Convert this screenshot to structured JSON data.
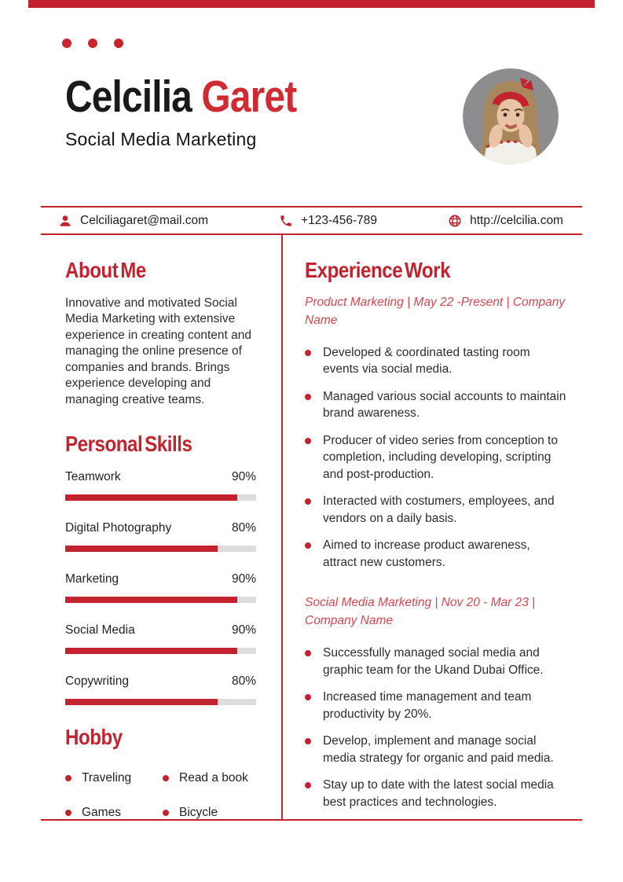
{
  "theme": {
    "primary_red": "#c2232e",
    "name_red": "#ce2b33",
    "job_title_red": "#d8464d",
    "bar_track_gray": "#dddddd"
  },
  "header": {
    "first_name": "Celcilia",
    "last_name": "Garet",
    "subtitle": "Social Media Marketing"
  },
  "contact": {
    "email": "Celciliagaret@mail.com",
    "phone": "+123-456-789",
    "website": "http://celcilia.com"
  },
  "about": {
    "title": "About Me",
    "text": "Innovative and motivated Social Media Marketing with extensive experience in creating content and managing the online presence of companies and brands. Brings experience developing and managing creative teams."
  },
  "skills": {
    "title": "Personal Skills",
    "items": [
      {
        "label": "Teamwork",
        "percent": "90%",
        "value": 90
      },
      {
        "label": "Digital Photography",
        "percent": "80%",
        "value": 80
      },
      {
        "label": "Marketing",
        "percent": "90%",
        "value": 90
      },
      {
        "label": "Social Media",
        "percent": "90%",
        "value": 90
      },
      {
        "label": "Copywriting",
        "percent": "80%",
        "value": 80
      }
    ]
  },
  "hobby": {
    "title": "Hobby",
    "items": [
      "Traveling",
      "Read a book",
      "Games",
      "Bicycle"
    ]
  },
  "experience": {
    "title": "Experience Work",
    "jobs": [
      {
        "title": "Product Marketing | May 22 -Present | Company Name",
        "bullets": [
          "Developed & coordinated tasting room events via social media.",
          "Managed various social accounts to maintain brand awareness.",
          "Producer of video series from conception to completion, including developing, scripting and post-production.",
          "Interacted with costumers, employees, and vendors on a daily basis.",
          "Aimed to increase product awareness, attract new customers."
        ]
      },
      {
        "title": "Social Media Marketing | Nov 20 - Mar 23 | Company Name",
        "bullets": [
          "Successfully managed social media and graphic team for the Ukand Dubai Office.",
          "Increased time management and team productivity by 20%.",
          "Develop, implement and manage social media strategy for organic and paid media.",
          "Stay up to date with the latest social media best practices and technologies."
        ]
      }
    ]
  }
}
